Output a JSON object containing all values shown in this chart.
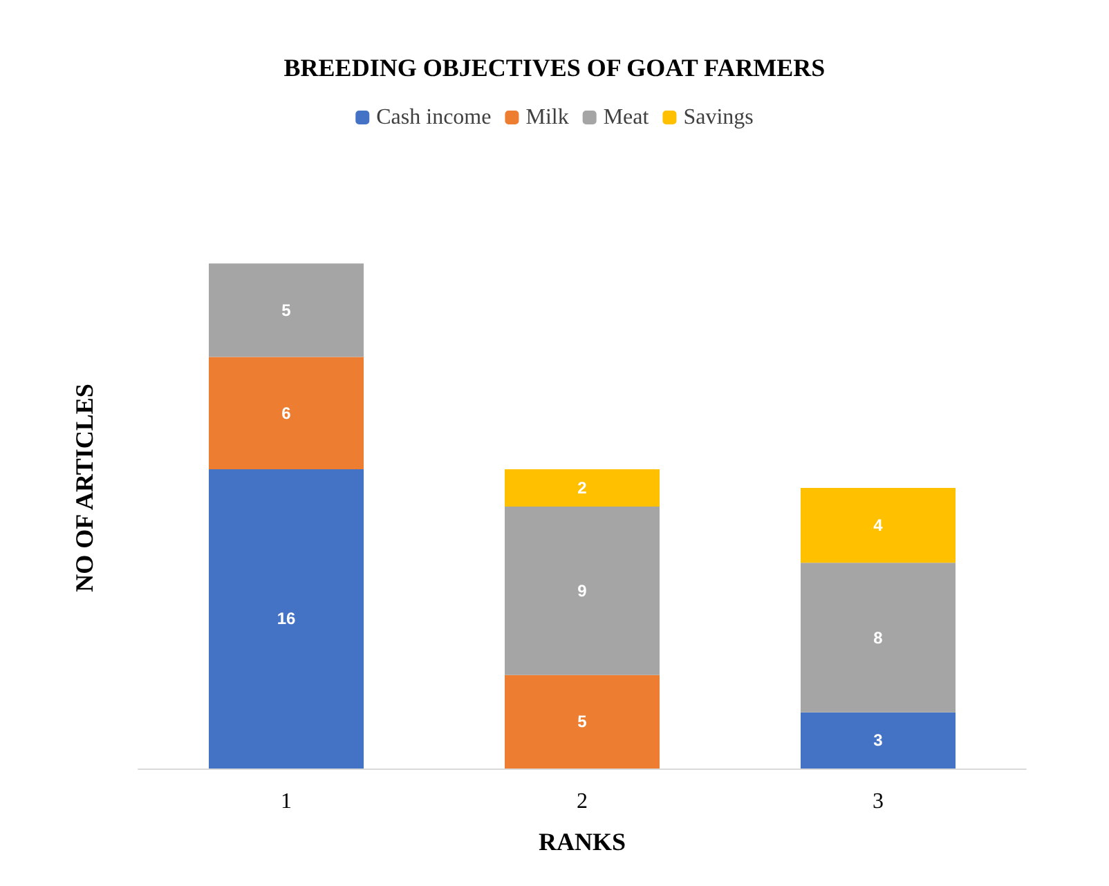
{
  "chart_data": {
    "type": "bar",
    "title": "BREEDING OBJECTIVES OF GOAT FARMERS",
    "xlabel": "RANKS",
    "ylabel": "NO OF ARTICLES",
    "categories": [
      "1",
      "2",
      "3"
    ],
    "stacked": true,
    "data_labels": true,
    "legend": "top",
    "grid": false,
    "tick_labels": "x",
    "series": [
      {
        "name": "Cash income",
        "color": "#4472c4",
        "values": [
          16,
          null,
          3
        ]
      },
      {
        "name": "Milk",
        "color": "#ed7d31",
        "values": [
          6,
          5,
          null
        ]
      },
      {
        "name": "Meat",
        "color": "#a5a5a5",
        "values": [
          5,
          9,
          8
        ]
      },
      {
        "name": "Savings",
        "color": "#ffc000",
        "values": [
          null,
          2,
          4
        ]
      }
    ]
  }
}
